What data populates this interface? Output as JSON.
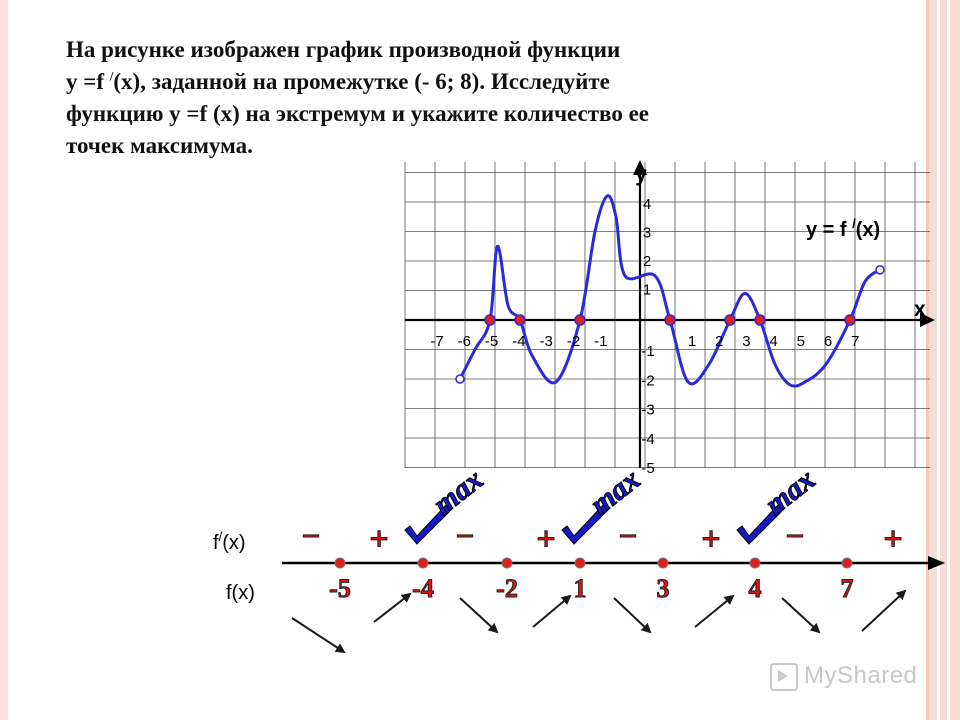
{
  "problem": {
    "line1": "На рисунке изображен график  производной функции",
    "line2_a": "y =f ",
    "line2_sup": "/",
    "line2_b": "(x), заданной на промежутке (- 6; 8). Исследуйте",
    "line3": "функцию y =f (x) на экстремум и укажите количество ее",
    "line4": "точек максимума."
  },
  "chart_data": {
    "type": "line",
    "title": "",
    "xlabel": "x",
    "ylabel": "y",
    "xlim": [
      -7,
      8
    ],
    "ylim": [
      -5,
      5
    ],
    "curve_label": {
      "text": "y = f ",
      "sup": "/",
      "after": "(x)"
    },
    "x_tick_labels_left": [
      "-7",
      "-6",
      "-5",
      "-4",
      "-3",
      "-2",
      "-1"
    ],
    "x_tick_labels_right": [
      "1",
      "2",
      "3",
      "4",
      "5",
      "6",
      "7"
    ],
    "y_tick_labels_pos": [
      "4",
      "3",
      "2",
      "1"
    ],
    "y_tick_labels_neg": [
      "-1",
      "-2",
      "-3",
      "-4",
      "-5"
    ],
    "series": [
      {
        "x": [
          -6,
          -5.5,
          -5,
          -4.75,
          -4.4,
          -4,
          -3.6,
          -2.8,
          -2,
          -1.5,
          -1.1,
          -0.8,
          -0.5,
          0.5,
          1,
          1.6,
          2.3,
          3,
          3.5,
          4,
          4.5,
          5,
          5.5,
          6.2,
          7,
          7.5,
          8
        ],
        "y": [
          -2,
          -1,
          0,
          2.5,
          0.5,
          0,
          -1.2,
          -2.1,
          0,
          3,
          4.2,
          3.5,
          1.5,
          1.5,
          0,
          -2.1,
          -1.5,
          0,
          0.9,
          0,
          -1.5,
          -2.2,
          -2.1,
          -1.5,
          0,
          1.3,
          1.7
        ]
      }
    ],
    "open_endpoints": [
      [
        -6,
        -2
      ],
      [
        8,
        1.7
      ]
    ],
    "zeros": [
      -5,
      -4,
      -2,
      1,
      3,
      4,
      7
    ]
  },
  "sign_chart": {
    "row_label_derivative": {
      "text": "f",
      "sup": "/",
      "after": "(x)"
    },
    "row_label_function": "f(x)",
    "signs": [
      "–",
      "+",
      "–",
      "+",
      "–",
      "+",
      "–",
      "+"
    ],
    "points": [
      "-5",
      "-4",
      "-2",
      "1",
      "3",
      "4",
      "7"
    ],
    "max_label": "max",
    "max_points": [
      "-4",
      "1",
      "4"
    ]
  },
  "watermark": "MyShared",
  "colors": {
    "curve": "#2a2ad8",
    "point_fill": "#e02020",
    "sign": "#e81010",
    "value": "#e81010",
    "max_text": "#1818c8",
    "check": "#1818c8",
    "arrow": "#1a1a1a",
    "grid": "#555555"
  }
}
